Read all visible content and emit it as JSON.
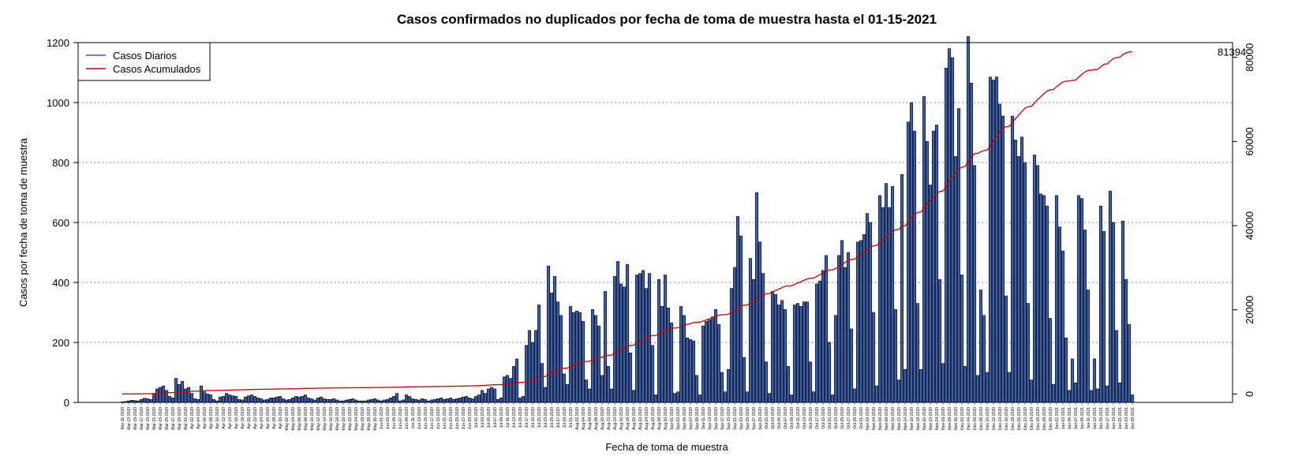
{
  "chart_data": {
    "type": "bar",
    "title": "Casos confirmados no duplicados por fecha de toma de muestra hasta el 01-15-2021",
    "xlabel": "Fecha de toma de muestra",
    "ylabel": "Casos por fecha de toma de muestra",
    "start_date": "2020-03-11",
    "end_date": "2021-01-13",
    "ylim": [
      0,
      1200
    ],
    "yticks": [
      0,
      200,
      400,
      600,
      800,
      1000,
      1200
    ],
    "y2lim": [
      -2000,
      83500
    ],
    "y2ticks": [
      0,
      20000,
      40000,
      60000,
      80000
    ],
    "grid": true,
    "legend_position": "top-left",
    "colors": {
      "bars": "#3d5ea8",
      "bar_border": "#000000",
      "cumulative": "#cc0000",
      "legend_daily": "#3d5ea8",
      "legend_cumulative": "#cc0000"
    },
    "series": [
      {
        "name": "Casos Diarios",
        "type": "bar",
        "axis": "left",
        "values": [
          2,
          3,
          5,
          7,
          6,
          5,
          10,
          14,
          12,
          10,
          30,
          45,
          50,
          55,
          40,
          20,
          15,
          80,
          60,
          70,
          45,
          50,
          30,
          12,
          10,
          55,
          35,
          28,
          25,
          10,
          5,
          18,
          20,
          30,
          25,
          22,
          20,
          10,
          8,
          18,
          22,
          25,
          20,
          15,
          12,
          8,
          10,
          15,
          15,
          18,
          20,
          12,
          8,
          10,
          15,
          20,
          18,
          20,
          25,
          15,
          12,
          8,
          15,
          18,
          12,
          10,
          10,
          12,
          8,
          5,
          5,
          8,
          10,
          12,
          8,
          5,
          5,
          5,
          8,
          10,
          12,
          8,
          5,
          8,
          10,
          15,
          20,
          30,
          5,
          8,
          25,
          20,
          12,
          10,
          8,
          12,
          10,
          5,
          8,
          10,
          12,
          15,
          10,
          12,
          15,
          10,
          12,
          15,
          18,
          20,
          15,
          12,
          20,
          25,
          40,
          30,
          45,
          50,
          45,
          10,
          15,
          85,
          90,
          80,
          120,
          145,
          15,
          20,
          190,
          240,
          200,
          240,
          325,
          130,
          50,
          455,
          365,
          420,
          335,
          290,
          95,
          60,
          320,
          300,
          305,
          300,
          270,
          75,
          45,
          310,
          290,
          255,
          90,
          370,
          120,
          45,
          420,
          470,
          395,
          385,
          460,
          165,
          40,
          425,
          430,
          440,
          380,
          430,
          190,
          25,
          410,
          320,
          425,
          315,
          265,
          30,
          35,
          320,
          290,
          215,
          210,
          205,
          90,
          25,
          255,
          270,
          275,
          285,
          310,
          260,
          100,
          35,
          110,
          380,
          450,
          620,
          555,
          150,
          35,
          480,
          410,
          700,
          535,
          430,
          135,
          30,
          370,
          360,
          325,
          340,
          310,
          120,
          25,
          325,
          330,
          320,
          335,
          335,
          135,
          35,
          395,
          405,
          440,
          490,
          200,
          25,
          290,
          490,
          540,
          450,
          500,
          245,
          45,
          535,
          540,
          560,
          630,
          600,
          300,
          55,
          690,
          650,
          730,
          650,
          720,
          310,
          75,
          760,
          110,
          935,
          1000,
          905,
          330,
          110,
          1020,
          870,
          725,
          905,
          925,
          410,
          130,
          1115,
          1180,
          1150,
          820,
          980,
          425,
          120,
          1220,
          1065,
          790,
          90,
          375,
          290,
          100,
          1085,
          1075,
          1085,
          995,
          955,
          355,
          100,
          955,
          875,
          820,
          885,
          800,
          330,
          75,
          825,
          790,
          695,
          690,
          655,
          280,
          60,
          690,
          585,
          505,
          215,
          40,
          145,
          65,
          690,
          680,
          575,
          375,
          40,
          145,
          45,
          655,
          570,
          55,
          705,
          600,
          240,
          65,
          605,
          410,
          260,
          25
        ]
      },
      {
        "name": "Casos Acumulados",
        "type": "line",
        "axis": "right",
        "label_last": "81394"
      }
    ]
  },
  "legend": {
    "daily_label": "Casos Diarios",
    "cumulative_label": "Casos Acumulados"
  },
  "final_total_label": "81394"
}
